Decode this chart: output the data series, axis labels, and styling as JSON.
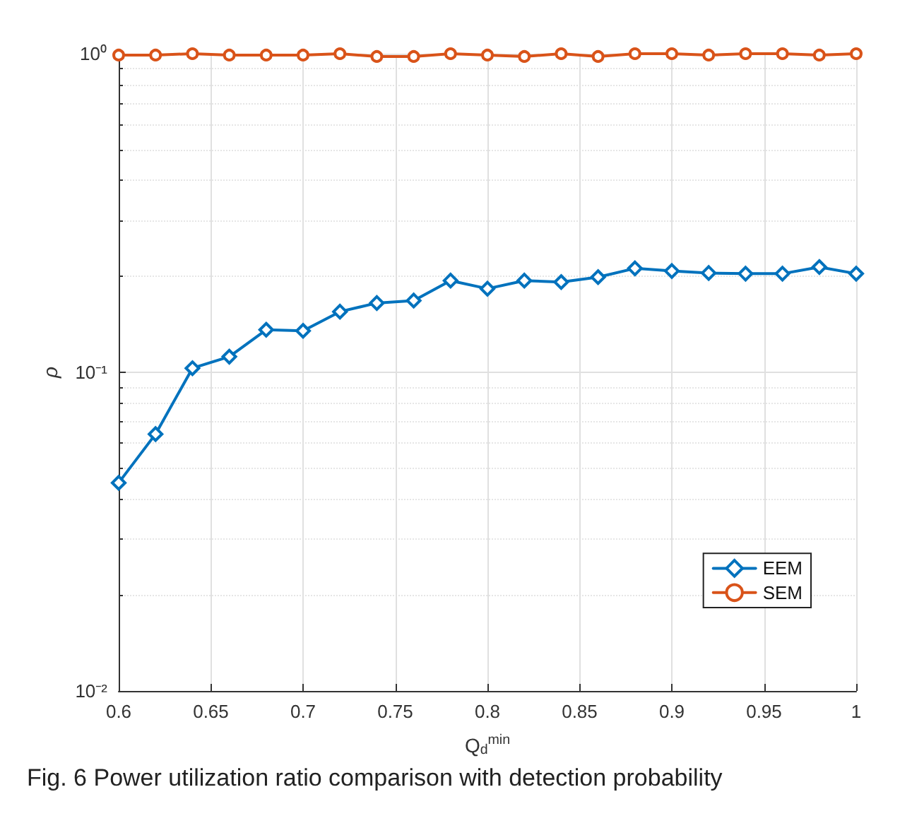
{
  "chart_data": {
    "type": "line",
    "title": "Fig. 6 Power utilization ratio comparison with detection probability",
    "xlabel": "Q$_{d}$$^{min}$",
    "ylabel": "ρ",
    "x": [
      0.6,
      0.62,
      0.64,
      0.66,
      0.68,
      0.7,
      0.72,
      0.74,
      0.76,
      0.78,
      0.8,
      0.82,
      0.84,
      0.86,
      0.88,
      0.9,
      0.92,
      0.94,
      0.96,
      0.98,
      1
    ],
    "series": [
      {
        "name": "EEM",
        "color": "#0072bd",
        "marker": "diamond",
        "values": [
          0.045,
          0.064,
          0.103,
          0.112,
          0.136,
          0.135,
          0.155,
          0.165,
          0.168,
          0.194,
          0.183,
          0.194,
          0.192,
          0.199,
          0.212,
          0.208,
          0.205,
          0.204,
          0.204,
          0.214,
          0.204
        ]
      },
      {
        "name": "SEM",
        "color": "#d95319",
        "marker": "circle",
        "values": [
          0.99,
          0.99,
          1,
          0.99,
          0.99,
          0.99,
          1,
          0.98,
          0.98,
          1,
          0.99,
          0.98,
          1,
          0.98,
          1,
          1,
          0.99,
          1,
          1,
          0.99,
          1
        ]
      }
    ],
    "xlim": [
      0.6,
      1
    ],
    "xticks": [
      0.6,
      0.65,
      0.7,
      0.75,
      0.8,
      0.85,
      0.9,
      0.95,
      1
    ],
    "ylim": [
      0.01,
      1
    ],
    "yticks": [
      {
        "value": 0.01,
        "label": "10⁻²"
      },
      {
        "value": 0.1,
        "label": "10⁻¹"
      },
      {
        "value": 1,
        "label": "10⁰"
      }
    ],
    "log": "y",
    "grid": true,
    "legend": "bottom right",
    "line_style": "solid"
  }
}
